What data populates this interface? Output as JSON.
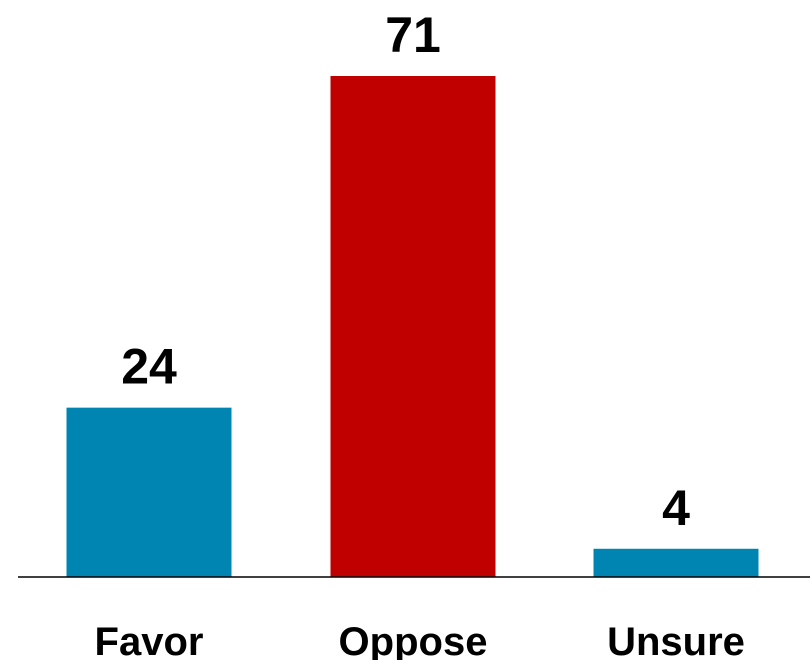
{
  "chart_data": {
    "type": "bar",
    "title": "",
    "xlabel": "",
    "ylabel": "",
    "categories": [
      "Favor",
      "Oppose",
      "Unsure"
    ],
    "values": [
      24,
      71,
      4
    ],
    "value_labels": [
      "24",
      "71",
      "4"
    ],
    "colors": [
      "#0085B2",
      "#C00000",
      "#0085B2"
    ],
    "ylim": [
      0,
      75
    ],
    "grid": false,
    "legend": "none"
  }
}
